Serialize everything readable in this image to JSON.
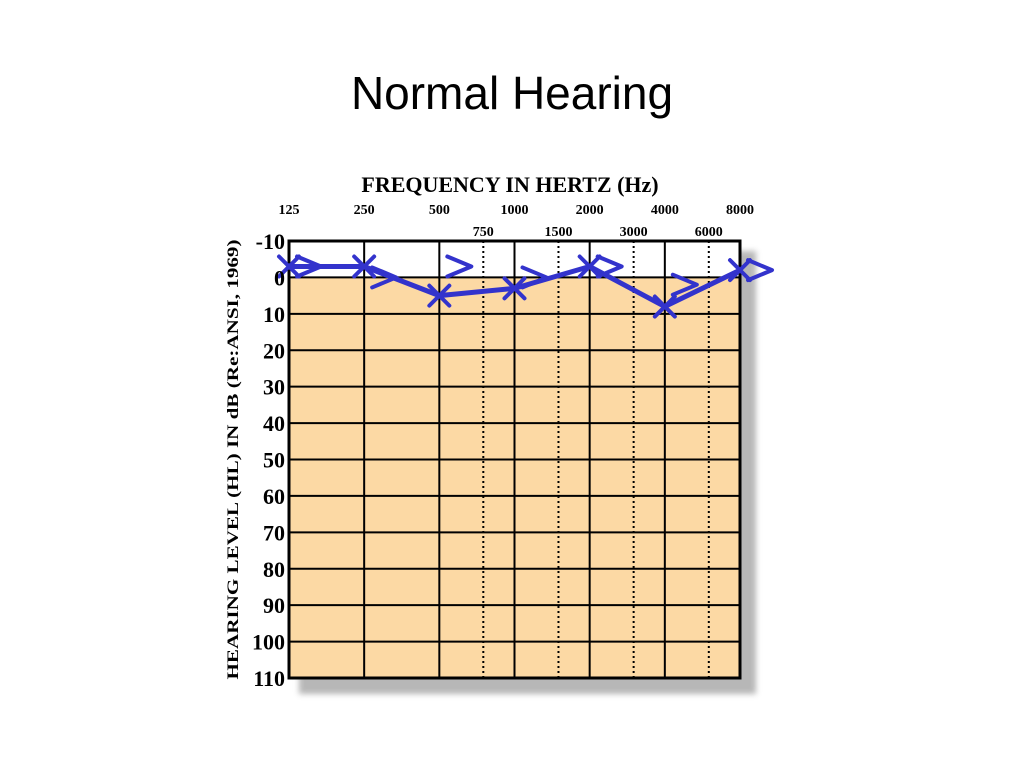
{
  "slide": {
    "title": "Normal Hearing"
  },
  "chart_data": {
    "type": "line",
    "title": "FREQUENCY IN HERTZ (Hz)",
    "xlabel": "FREQUENCY IN HERTZ (Hz)",
    "ylabel": "HEARING LEVEL (HL) IN dB (Re:ANSI, 1969)",
    "x_scale": "log2",
    "x_main_ticks": [
      125,
      250,
      500,
      1000,
      2000,
      4000,
      8000
    ],
    "x_main_tick_labels": [
      "125",
      "250",
      "500",
      "1000",
      "2000",
      "4000",
      "8000"
    ],
    "x_inter_ticks": [
      750,
      1500,
      3000,
      6000
    ],
    "x_inter_tick_labels": [
      "750",
      "1500",
      "3000",
      "6000"
    ],
    "y_ticks": [
      -10,
      0,
      10,
      20,
      30,
      40,
      50,
      60,
      70,
      80,
      90,
      100,
      110
    ],
    "y_tick_labels": [
      "-10",
      "0",
      "10",
      "20",
      "30",
      "40",
      "50",
      "60",
      "70",
      "80",
      "90",
      "100",
      "110"
    ],
    "ylim": [
      -10,
      110
    ],
    "y_inverted": true,
    "grid": true,
    "series": [
      {
        "marker": "x",
        "color": "#3333cc",
        "x": [
          125,
          250,
          500,
          1000,
          2000,
          4000,
          8000
        ],
        "values": [
          -3,
          -3,
          5,
          3,
          -3,
          8,
          -2
        ]
      },
      {
        "marker": ">",
        "color": "#3333cc",
        "x": [
          125,
          250,
          500,
          1000,
          2000,
          4000,
          8000
        ],
        "values": [
          -3,
          0,
          -3,
          0,
          -3,
          2,
          -2
        ]
      }
    ]
  }
}
